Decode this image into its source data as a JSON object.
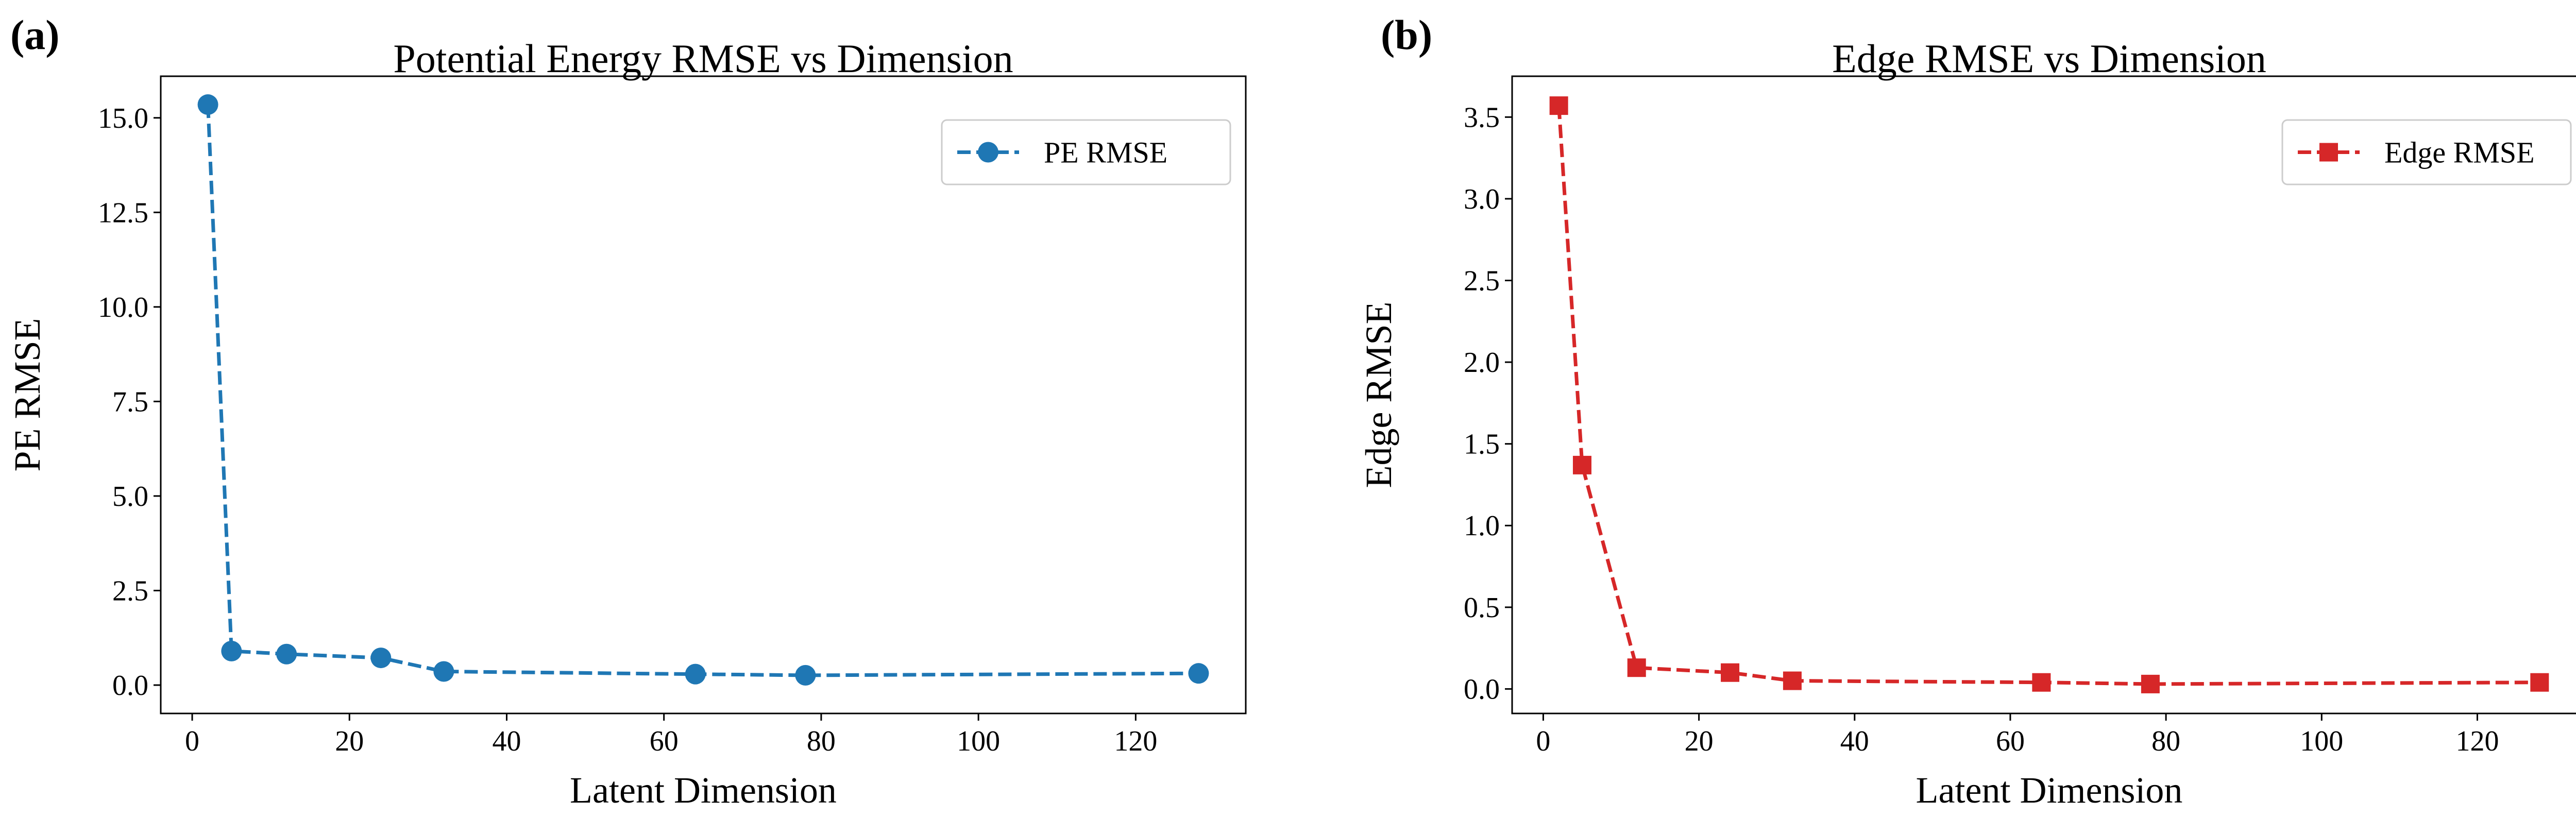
{
  "figure": {
    "panel_labels": [
      "(a)",
      "(b)"
    ]
  },
  "chart_data": [
    {
      "type": "line",
      "panel": "(a)",
      "title": "Potential Energy RMSE vs Dimension",
      "xlabel": "Latent Dimension",
      "ylabel": "PE RMSE",
      "xlim": [
        -4,
        134
      ],
      "ylim": [
        -0.75,
        16.1
      ],
      "xticks": [
        0,
        20,
        40,
        60,
        80,
        100,
        120
      ],
      "xtick_labels": [
        "0",
        "20",
        "40",
        "60",
        "80",
        "100",
        "120"
      ],
      "yticks": [
        0,
        2.5,
        5,
        7.5,
        10,
        12.5,
        15
      ],
      "ytick_labels": [
        "0.0",
        "2.5",
        "5.0",
        "7.5",
        "10.0",
        "12.5",
        "15.0"
      ],
      "grid": false,
      "legend_position": "top-right",
      "series": [
        {
          "name": "PE RMSE",
          "color": "#1f77b4",
          "marker": "circle",
          "linestyle": "dashed",
          "x": [
            2,
            5,
            12,
            24,
            32,
            64,
            78,
            128
          ],
          "values": [
            15.35,
            0.9,
            0.82,
            0.72,
            0.36,
            0.29,
            0.26,
            0.31
          ]
        }
      ]
    },
    {
      "type": "line",
      "panel": "(b)",
      "title": "Edge RMSE vs Dimension",
      "xlabel": "Latent Dimension",
      "ylabel": "Edge RMSE",
      "xlim": [
        -4,
        134
      ],
      "ylim": [
        -0.15,
        3.75
      ],
      "xticks": [
        0,
        20,
        40,
        60,
        80,
        100,
        120
      ],
      "xtick_labels": [
        "0",
        "20",
        "40",
        "60",
        "80",
        "100",
        "120"
      ],
      "yticks": [
        0,
        0.5,
        1,
        1.5,
        2,
        2.5,
        3,
        3.5
      ],
      "ytick_labels": [
        "0.0",
        "0.5",
        "1.0",
        "1.5",
        "2.0",
        "2.5",
        "3.0",
        "3.5"
      ],
      "grid": false,
      "legend_position": "top-right",
      "series": [
        {
          "name": "Edge RMSE",
          "color": "#d62728",
          "marker": "square",
          "linestyle": "dashed",
          "x": [
            2,
            5,
            12,
            24,
            32,
            64,
            78,
            128
          ],
          "values": [
            3.57,
            1.37,
            0.13,
            0.1,
            0.05,
            0.04,
            0.03,
            0.04
          ]
        }
      ]
    }
  ]
}
